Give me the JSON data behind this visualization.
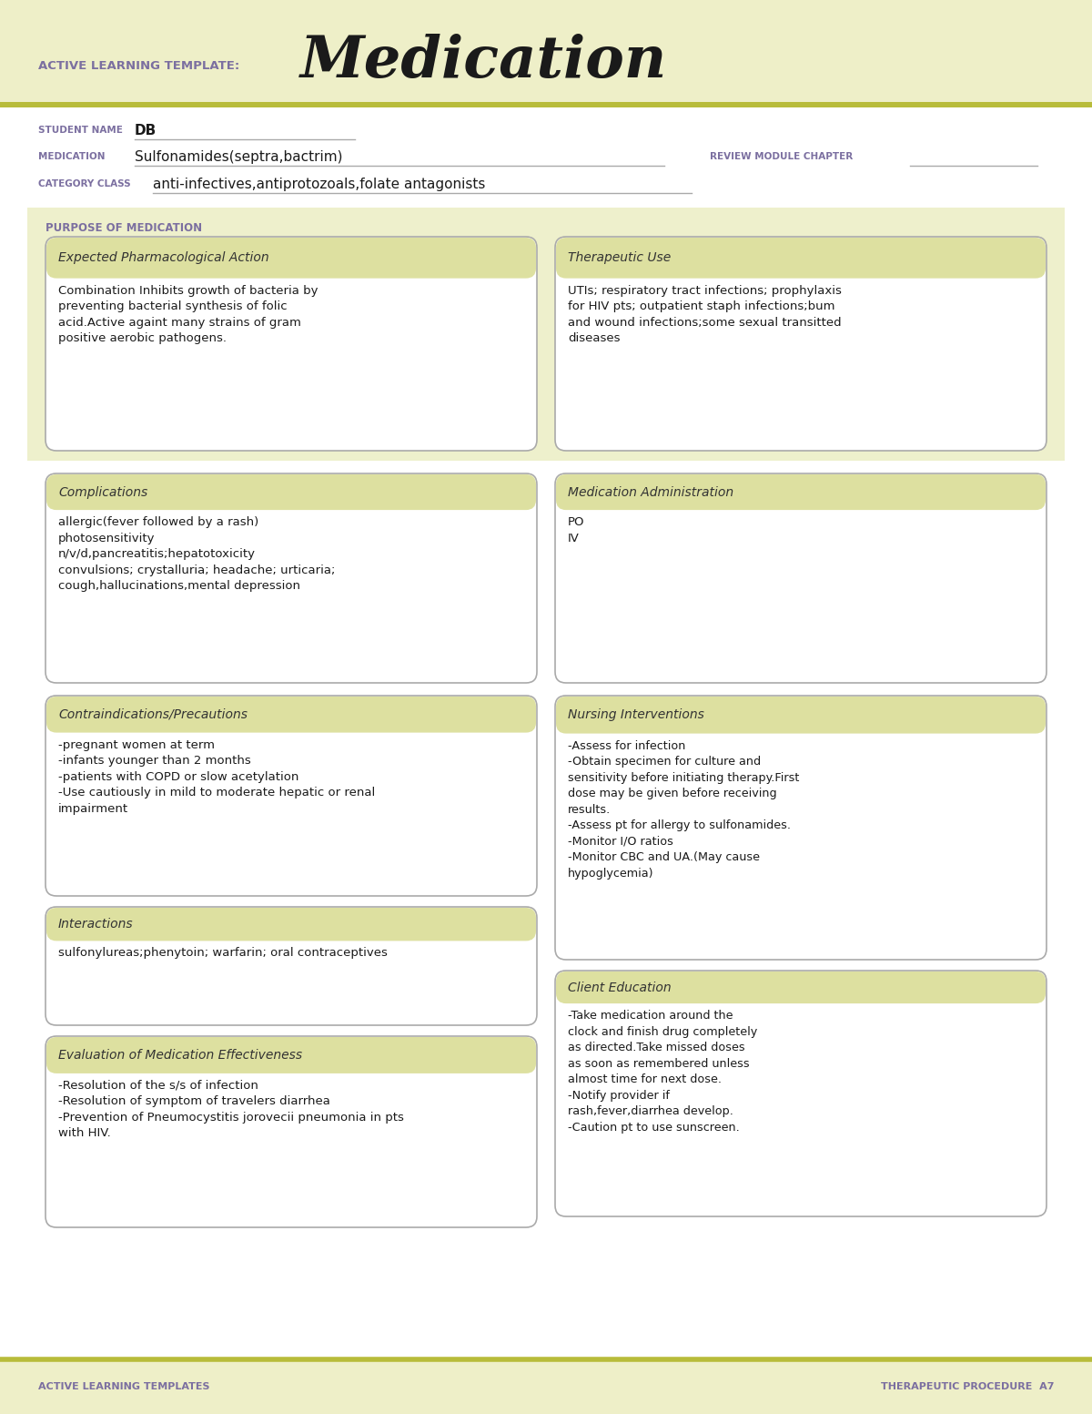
{
  "page_bg": "#ffffff",
  "header_bg": "#eeefc8",
  "header_line_color": "#b8bc3a",
  "purple_color": "#7b6fa0",
  "dark_text": "#1a1a1a",
  "box_header_bg": "#dde0a0",
  "box_bg": "#ffffff",
  "box_border": "#aaaaaa",
  "purpose_bg": "#eef0cc",
  "footer_bg": "#eeefc8",
  "title_text": "Medication",
  "header_label": "ACTIVE LEARNING TEMPLATE:",
  "student_name_label": "STUDENT NAME",
  "student_name_value": "DB",
  "medication_label": "MEDICATION",
  "medication_value": "Sulfonamides(septra,bactrim)",
  "review_label": "REVIEW MODULE CHAPTER",
  "category_label": "CATEGORY CLASS",
  "category_value": "anti-infectives,antiprotozoals,folate antagonists",
  "purpose_label": "PURPOSE OF MEDICATION",
  "box1_title": "Expected Pharmacological Action",
  "box1_content": "Combination Inhibits growth of bacteria by\npreventing bacterial synthesis of folic\nacid.Active againt many strains of gram\npositive aerobic pathogens.",
  "box2_title": "Therapeutic Use",
  "box2_content": "UTIs; respiratory tract infections; prophylaxis\nfor HIV pts; outpatient staph infections;bum\nand wound infections;some sexual transitted\ndiseases",
  "box3_title": "Complications",
  "box3_content": "allergic(fever followed by a rash)\nphotosensitivity\nn/v/d,pancreatitis;hepatotoxicity\nconvulsions; crystalluria; headache; urticaria;\ncough,hallucinations,mental depression",
  "box4_title": "Medication Administration",
  "box4_content": "PO\nIV",
  "box5_title": "Contraindications/Precautions",
  "box5_content": "-pregnant women at term\n-infants younger than 2 months\n-patients with COPD or slow acetylation\n-Use cautiously in mild to moderate hepatic or renal\nimpairment",
  "box6_title": "Nursing Interventions",
  "box6_content": "-Assess for infection\n-Obtain specimen for culture and\nsensitivity before initiating therapy.First\ndose may be given before receiving\nresults.\n-Assess pt for allergy to sulfonamides.\n-Monitor I/O ratios\n-Monitor CBC and UA.(May cause\nhypoglycemia)",
  "box7_title": "Interactions",
  "box7_content": "sulfonylureas;phenytoin; warfarin; oral contraceptives",
  "box8_title": "Client Education",
  "box8_content": "-Take medication around the\nclock and finish drug completely\nas directed.Take missed doses\nas soon as remembered unless\nalmost time for next dose.\n-Notify provider if\nrash,fever,diarrhea develop.\n-Caution pt to use sunscreen.",
  "box9_title": "Evaluation of Medication Effectiveness",
  "box9_content": "-Resolution of the s/s of infection\n-Resolution of symptom of travelers diarrhea\n-Prevention of Pneumocystitis jorovecii pneumonia in pts\nwith HIV.",
  "footer_left": "ACTIVE LEARNING TEMPLATES",
  "footer_right": "THERAPEUTIC PROCEDURE  A7"
}
